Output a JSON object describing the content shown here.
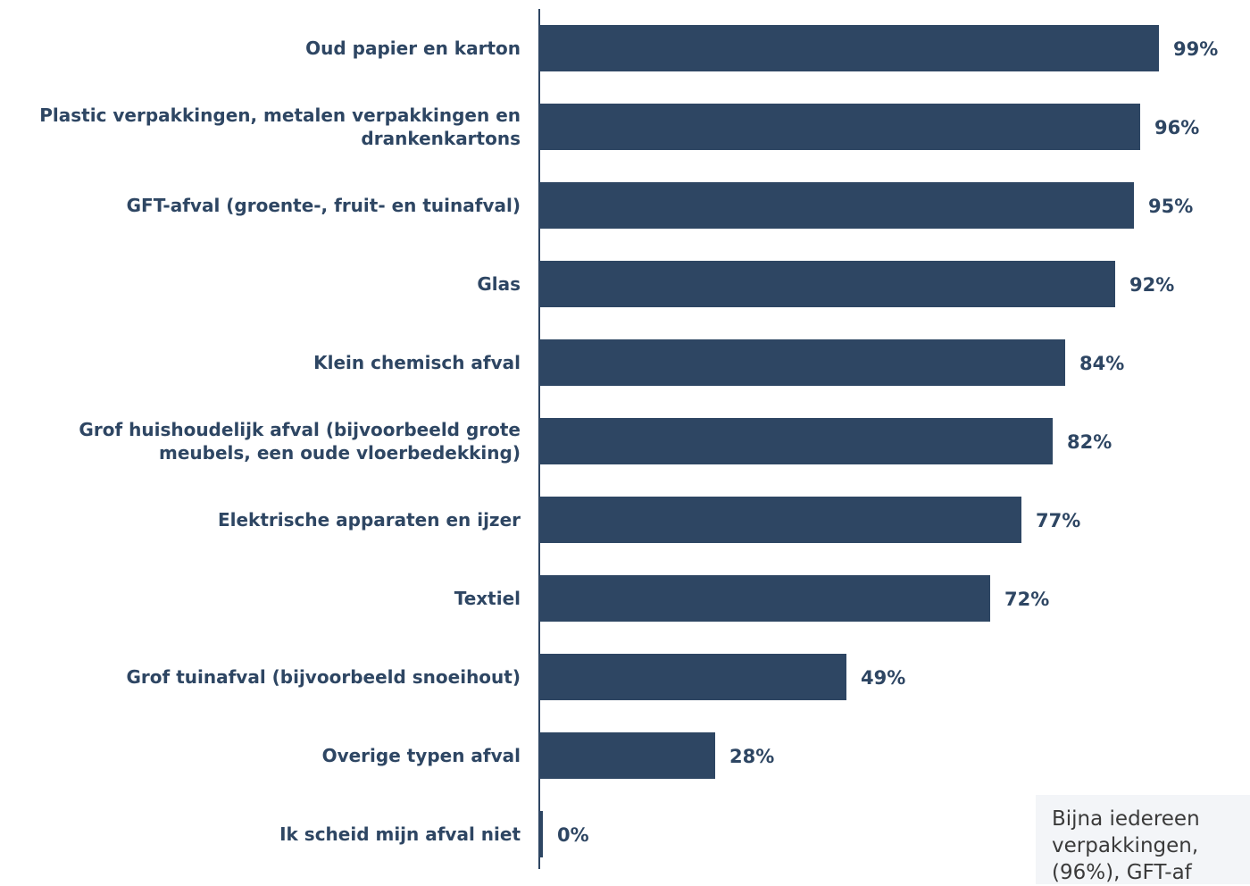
{
  "chart_data": {
    "type": "bar",
    "orientation": "horizontal",
    "categories": [
      [
        "Oud papier en karton"
      ],
      [
        "Plastic verpakkingen, metalen verpakkingen en",
        "drankenkartons"
      ],
      [
        "GFT-afval (groente-, fruit- en tuinafval)"
      ],
      [
        "Glas"
      ],
      [
        "Klein chemisch afval"
      ],
      [
        "Grof huishoudelijk afval (bijvoorbeeld grote",
        "meubels, een oude vloerbedekking)"
      ],
      [
        "Elektrische apparaten en ijzer"
      ],
      [
        "Textiel"
      ],
      [
        "Grof tuinafval (bijvoorbeeld snoeihout)"
      ],
      [
        "Overige typen afval"
      ],
      [
        "Ik scheid mijn afval niet"
      ]
    ],
    "values": [
      99,
      96,
      95,
      92,
      84,
      82,
      77,
      72,
      49,
      28,
      0
    ],
    "value_labels": [
      "99%",
      "96%",
      "95%",
      "92%",
      "84%",
      "82%",
      "77%",
      "72%",
      "49%",
      "28%",
      "0%"
    ],
    "xlim": [
      0,
      100
    ],
    "grid": false,
    "bar_color": "#2e4663"
  },
  "note": {
    "text": "Bijna iedereen\nverpakkingen,\n(96%), GFT-af"
  }
}
